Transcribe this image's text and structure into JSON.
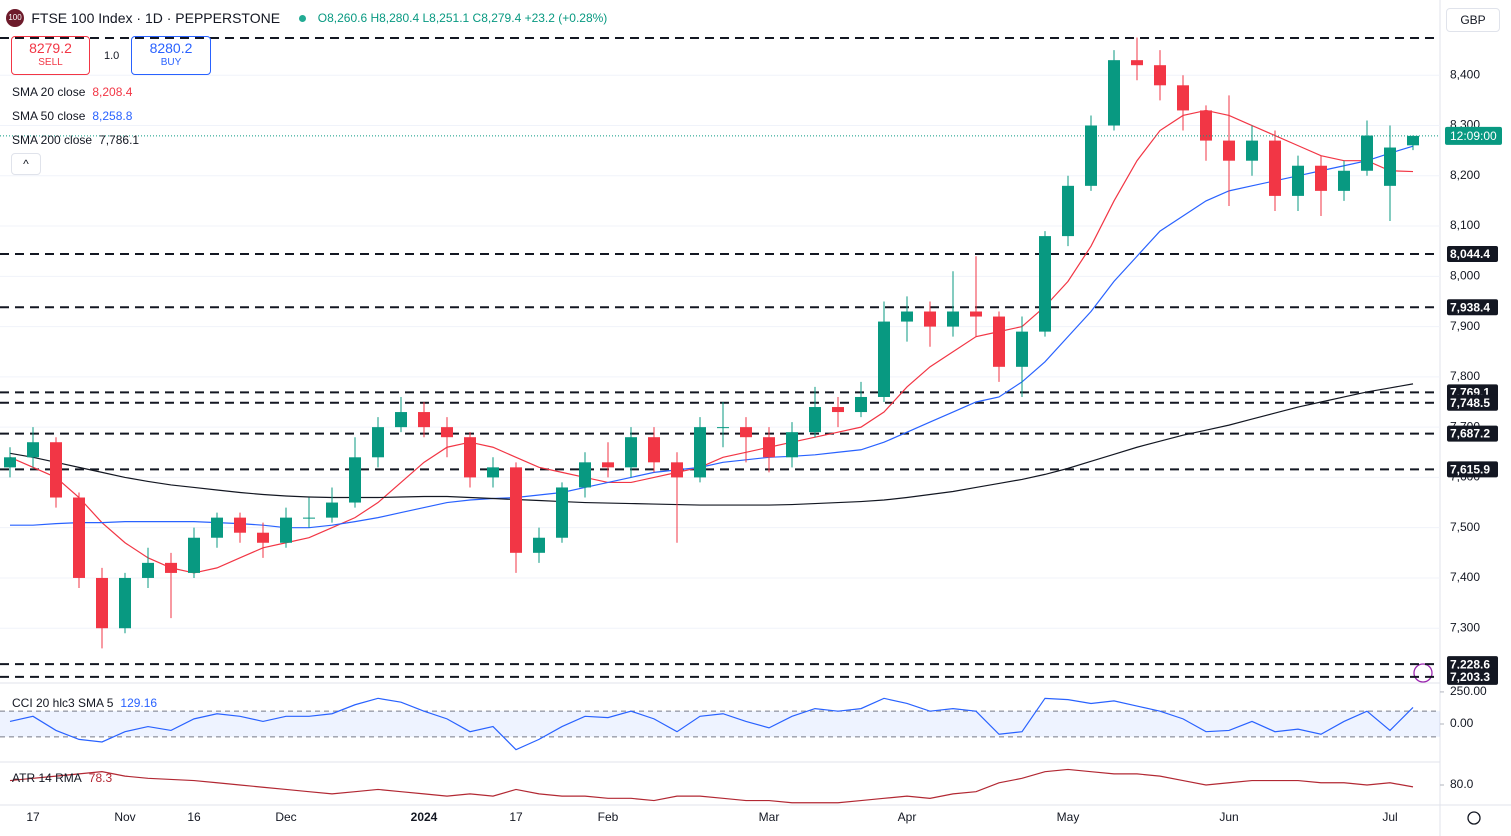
{
  "chart_data": {
    "type": "candlestick",
    "header": {
      "icon": "100",
      "title": "FTSE 100 Index · 1D · PEPPERSTONE",
      "ohlc": "O8,260.6 H8,280.4 L8,251.1 C8,279.4 +23.2 (+0.28%)",
      "sell_price": "8279.2",
      "sell": "SELL",
      "quantity": "1.0",
      "buy_price": "8280.2",
      "buy": "BUY",
      "currency": "GBP",
      "countdown": "12:09:00"
    },
    "categories": [
      null,
      "17",
      null,
      null,
      null,
      "Nov",
      null,
      null,
      "16",
      null,
      null,
      null,
      "Dec",
      null,
      null,
      null,
      null,
      null,
      "2024",
      null,
      null,
      null,
      "17",
      null,
      null,
      null,
      "Feb",
      null,
      null,
      null,
      null,
      null,
      null,
      "Mar",
      null,
      null,
      null,
      null,
      null,
      "Apr",
      null,
      null,
      null,
      null,
      null,
      null,
      "May",
      null,
      null,
      null,
      null,
      null,
      null,
      "Jun",
      null,
      null,
      null,
      null,
      null,
      null,
      "Jul",
      null
    ],
    "open": [
      7620,
      7640,
      7670,
      7560,
      7400,
      7300,
      7400,
      7430,
      7410,
      7480,
      7520,
      7490,
      7470,
      7520,
      7520,
      7550,
      7640,
      7700,
      7730,
      7700,
      7680,
      7600,
      7620,
      7450,
      7480,
      7580,
      7630,
      7620,
      7680,
      7630,
      7600,
      7700,
      7700,
      7680,
      7640,
      7690,
      7740,
      7730,
      7760,
      7910,
      7930,
      7900,
      7930,
      7920,
      7820,
      7890,
      8080,
      8180,
      8300,
      8430,
      8420,
      8380,
      8330,
      8270,
      8230,
      8270,
      8160,
      8220,
      8170,
      8210,
      8180,
      8260.6
    ],
    "high": [
      7660,
      7700,
      7680,
      7570,
      7420,
      7410,
      7460,
      7450,
      7500,
      7530,
      7530,
      7510,
      7540,
      7560,
      7580,
      7680,
      7720,
      7760,
      7750,
      7720,
      7690,
      7640,
      7630,
      7500,
      7590,
      7650,
      7670,
      7700,
      7700,
      7650,
      7720,
      7750,
      7720,
      7700,
      7710,
      7780,
      7760,
      7790,
      7950,
      7960,
      7950,
      8010,
      8040,
      7930,
      7920,
      8090,
      8200,
      8320,
      8450,
      8475,
      8450,
      8400,
      8340,
      8360,
      8300,
      8290,
      8240,
      8240,
      8230,
      8310,
      8300,
      8280.4
    ],
    "low": [
      7600,
      7620,
      7540,
      7380,
      7260,
      7290,
      7380,
      7320,
      7400,
      7460,
      7470,
      7440,
      7460,
      7500,
      7510,
      7540,
      7620,
      7690,
      7680,
      7640,
      7580,
      7580,
      7410,
      7430,
      7470,
      7560,
      7600,
      7600,
      7610,
      7470,
      7590,
      7660,
      7630,
      7610,
      7620,
      7680,
      7700,
      7720,
      7750,
      7870,
      7860,
      7880,
      7880,
      7790,
      7760,
      7880,
      8060,
      8170,
      8290,
      8390,
      8350,
      8290,
      8230,
      8140,
      8200,
      8130,
      8130,
      8120,
      8150,
      8200,
      8110,
      8251.1
    ],
    "close": [
      7640,
      7670,
      7560,
      7400,
      7300,
      7400,
      7430,
      7410,
      7480,
      7520,
      7490,
      7470,
      7520,
      7520,
      7550,
      7640,
      7700,
      7730,
      7700,
      7680,
      7600,
      7620,
      7450,
      7480,
      7580,
      7630,
      7620,
      7680,
      7630,
      7600,
      7700,
      7700,
      7680,
      7640,
      7690,
      7740,
      7730,
      7760,
      7910,
      7930,
      7900,
      7930,
      7920,
      7820,
      7890,
      8080,
      8180,
      8300,
      8430,
      8420,
      8380,
      8330,
      8270,
      8230,
      8270,
      8160,
      8220,
      8170,
      8210,
      8280,
      8256.2,
      8279.4
    ],
    "up_color": "#089981",
    "down_color": "#f23645",
    "ylim": [
      7197,
      8490
    ],
    "yticks": [
      {
        "value": 7300,
        "label": "7,300"
      },
      {
        "value": 7400,
        "label": "7,400"
      },
      {
        "value": 7500,
        "label": "7,500"
      },
      {
        "value": 7600,
        "label": "7,600"
      },
      {
        "value": 7700,
        "label": "7,700"
      },
      {
        "value": 7800,
        "label": "7,800"
      },
      {
        "value": 7900,
        "label": "7,900"
      },
      {
        "value": 8000,
        "label": "8,000"
      },
      {
        "value": 8100,
        "label": "8,100"
      },
      {
        "value": 8200,
        "label": "8,200"
      },
      {
        "value": 8300,
        "label": "8,300"
      },
      {
        "value": 8400,
        "label": "8,400"
      }
    ],
    "levels": [
      {
        "value": 8474
      },
      {
        "value": 8044.4,
        "label": "8,044.4"
      },
      {
        "value": 7938.4,
        "label": "7,938.4"
      },
      {
        "value": 7769.1,
        "label": "7,769.1"
      },
      {
        "value": 7748.5,
        "label": "7,748.5"
      },
      {
        "value": 7687.2,
        "label": "7,687.2"
      },
      {
        "value": 7615.9,
        "label": "7,615.9"
      },
      {
        "value": 7228.6,
        "label": "7,228.6"
      },
      {
        "value": 7203.3,
        "label": "7,203.3"
      }
    ],
    "series": [
      {
        "name": "SMA 20 close",
        "color": "#f23645",
        "last_label": "8,208.4",
        "values": [
          7640,
          7620,
          7600,
          7560,
          7510,
          7470,
          7440,
          7420,
          7410,
          7420,
          7440,
          7460,
          7470,
          7480,
          7500,
          7520,
          7550,
          7590,
          7630,
          7660,
          7670,
          7660,
          7640,
          7620,
          7610,
          7600,
          7590,
          7590,
          7600,
          7610,
          7620,
          7640,
          7650,
          7660,
          7670,
          7680,
          7690,
          7700,
          7730,
          7780,
          7820,
          7850,
          7880,
          7890,
          7900,
          7940,
          7990,
          8060,
          8150,
          8230,
          8290,
          8320,
          8330,
          8320,
          8300,
          8280,
          8260,
          8240,
          8230,
          8230,
          8210,
          8208.4
        ]
      },
      {
        "name": "SMA 50 close",
        "color": "#2962ff",
        "last_label": "8,258.8",
        "values": [
          7505,
          7505,
          7508,
          7510,
          7510,
          7512,
          7512,
          7512,
          7512,
          7510,
          7508,
          7505,
          7500,
          7500,
          7505,
          7512,
          7520,
          7530,
          7540,
          7550,
          7555,
          7558,
          7560,
          7565,
          7570,
          7580,
          7590,
          7600,
          7610,
          7615,
          7620,
          7630,
          7635,
          7640,
          7642,
          7645,
          7650,
          7655,
          7670,
          7690,
          7710,
          7730,
          7750,
          7760,
          7790,
          7830,
          7880,
          7930,
          7990,
          8040,
          8090,
          8120,
          8150,
          8170,
          8180,
          8190,
          8200,
          8210,
          8220,
          8230,
          8245,
          8258.8
        ]
      },
      {
        "name": "SMA 200 close",
        "color": "#131722",
        "last_label": "7,786.1",
        "values": [
          7648,
          7640,
          7630,
          7620,
          7610,
          7600,
          7592,
          7585,
          7580,
          7575,
          7570,
          7566,
          7563,
          7561,
          7560,
          7560,
          7560,
          7561,
          7562,
          7562,
          7560,
          7558,
          7556,
          7554,
          7552,
          7550,
          7549,
          7548,
          7547,
          7546,
          7545,
          7545,
          7545,
          7545,
          7546,
          7548,
          7550,
          7552,
          7555,
          7560,
          7566,
          7572,
          7580,
          7588,
          7596,
          7606,
          7618,
          7632,
          7646,
          7660,
          7672,
          7684,
          7694,
          7704,
          7716,
          7728,
          7740,
          7750,
          7760,
          7770,
          7778,
          7786.1
        ]
      }
    ],
    "indicators": [
      {
        "name": "CCI 20 hlc3 SMA 5",
        "color": "#2962ff",
        "last_label": "129.16",
        "ylim": [
          -265,
          265
        ],
        "yticks": [
          {
            "value": 250,
            "label": "250.00"
          },
          {
            "value": 0,
            "label": "0.00"
          }
        ],
        "bands": [
          -100,
          100
        ],
        "values": [
          20,
          60,
          -50,
          -120,
          -140,
          -60,
          -20,
          -50,
          40,
          80,
          60,
          20,
          60,
          60,
          80,
          150,
          200,
          170,
          100,
          40,
          -60,
          -20,
          -200,
          -120,
          -20,
          60,
          50,
          100,
          40,
          -60,
          60,
          80,
          20,
          -30,
          60,
          120,
          100,
          120,
          200,
          160,
          100,
          120,
          100,
          -80,
          -60,
          200,
          190,
          160,
          180,
          140,
          100,
          40,
          -60,
          -50,
          20,
          -60,
          -40,
          -80,
          20,
          100,
          -50,
          129.16
        ]
      },
      {
        "name": "ATR 14 RMA",
        "color": "#b22833",
        "last_label": "78.3",
        "ylim": [
          62,
          98
        ],
        "yticks": [
          {
            "value": 80,
            "label": "80.0"
          }
        ],
        "values": [
          84,
          86,
          88,
          90,
          92,
          88,
          86,
          85,
          84,
          82,
          80,
          78,
          76,
          74,
          72,
          74,
          76,
          74,
          72,
          70,
          72,
          70,
          76,
          72,
          70,
          70,
          68,
          68,
          66,
          70,
          70,
          68,
          66,
          66,
          64,
          64,
          64,
          66,
          68,
          70,
          68,
          72,
          74,
          82,
          86,
          92,
          94,
          92,
          90,
          90,
          88,
          84,
          80,
          82,
          84,
          84,
          84,
          82,
          82,
          80,
          82,
          78.3
        ]
      }
    ]
  }
}
